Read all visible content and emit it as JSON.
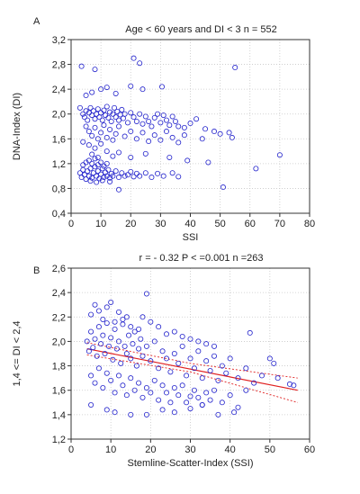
{
  "chart_data": [
    {
      "panel": "A",
      "type": "scatter",
      "title": "Age < 60 years and DI < 3    n = 552",
      "xlabel": "SSI",
      "ylabel": "DNA-Index (DI)",
      "xlim": [
        0,
        80
      ],
      "ylim": [
        0.4,
        3.2
      ],
      "xticks": [
        0,
        10,
        20,
        30,
        40,
        50,
        60,
        70,
        80
      ],
      "yticks": [
        0.4,
        0.8,
        1.2,
        1.6,
        2.0,
        2.4,
        2.8,
        3.2
      ],
      "xtick_labels": [
        "0",
        "10",
        "20",
        "30",
        "40",
        "50",
        "60",
        "70",
        "80"
      ],
      "ytick_labels": [
        "0,4",
        "0,8",
        "1,2",
        "1,6",
        "2,0",
        "2,4",
        "2,8",
        "3,2"
      ],
      "grid": true,
      "marker_color": "#2222cc",
      "points": [
        [
          3.5,
          2.77
        ],
        [
          8,
          2.72
        ],
        [
          21,
          2.9
        ],
        [
          23,
          2.82
        ],
        [
          55,
          2.75
        ],
        [
          30.5,
          2.44
        ],
        [
          20,
          2.45
        ],
        [
          24,
          2.4
        ],
        [
          10,
          2.4
        ],
        [
          12,
          2.43
        ],
        [
          5,
          2.3
        ],
        [
          7,
          2.35
        ],
        [
          15,
          2.33
        ],
        [
          3,
          2.1
        ],
        [
          4,
          2.0
        ],
        [
          4.5,
          1.95
        ],
        [
          5,
          2.05
        ],
        [
          5.5,
          1.9
        ],
        [
          6,
          2.02
        ],
        [
          6.5,
          2.1
        ],
        [
          7,
          1.98
        ],
        [
          7.5,
          2.05
        ],
        [
          8,
          1.92
        ],
        [
          8.5,
          2.0
        ],
        [
          9,
          2.08
        ],
        [
          9.5,
          1.95
        ],
        [
          10,
          2.02
        ],
        [
          10.5,
          1.9
        ],
        [
          11,
          2.06
        ],
        [
          11.5,
          1.98
        ],
        [
          12,
          2.12
        ],
        [
          12.5,
          1.94
        ],
        [
          13,
          2.03
        ],
        [
          13.5,
          1.88
        ],
        [
          14,
          2.0
        ],
        [
          14.5,
          2.1
        ],
        [
          15,
          1.95
        ],
        [
          15.5,
          2.04
        ],
        [
          16,
          1.9
        ],
        [
          16.5,
          1.99
        ],
        [
          17,
          2.07
        ],
        [
          17.5,
          1.93
        ],
        [
          18,
          2.0
        ],
        [
          19,
          1.86
        ],
        [
          20,
          2.02
        ],
        [
          21,
          1.95
        ],
        [
          22,
          1.88
        ],
        [
          23,
          2.0
        ],
        [
          24,
          1.84
        ],
        [
          25,
          1.96
        ],
        [
          26,
          1.88
        ],
        [
          27,
          1.8
        ],
        [
          28,
          1.94
        ],
        [
          29,
          2.0
        ],
        [
          30,
          1.86
        ],
        [
          31,
          1.98
        ],
        [
          32,
          1.9
        ],
        [
          33,
          1.82
        ],
        [
          34,
          1.96
        ],
        [
          35,
          1.88
        ],
        [
          36,
          1.8
        ],
        [
          38,
          1.78
        ],
        [
          40,
          1.85
        ],
        [
          42,
          1.92
        ],
        [
          45,
          1.76
        ],
        [
          48,
          1.72
        ],
        [
          50,
          1.68
        ],
        [
          53,
          1.7
        ],
        [
          5,
          1.8
        ],
        [
          6,
          1.72
        ],
        [
          7,
          1.65
        ],
        [
          8,
          1.78
        ],
        [
          9,
          1.6
        ],
        [
          10,
          1.7
        ],
        [
          11,
          1.82
        ],
        [
          12,
          1.62
        ],
        [
          13,
          1.75
        ],
        [
          14,
          1.58
        ],
        [
          15,
          1.68
        ],
        [
          16,
          1.8
        ],
        [
          18,
          1.64
        ],
        [
          20,
          1.72
        ],
        [
          22,
          1.6
        ],
        [
          24,
          1.7
        ],
        [
          26,
          1.56
        ],
        [
          28,
          1.66
        ],
        [
          30,
          1.58
        ],
        [
          32,
          1.72
        ],
        [
          34,
          1.62
        ],
        [
          36,
          1.54
        ],
        [
          38,
          1.66
        ],
        [
          44,
          1.6
        ],
        [
          54,
          1.62
        ],
        [
          4,
          1.55
        ],
        [
          6,
          1.5
        ],
        [
          8,
          1.45
        ],
        [
          10,
          1.52
        ],
        [
          7,
          1.35
        ],
        [
          9,
          1.3
        ],
        [
          12,
          1.4
        ],
        [
          14,
          1.32
        ],
        [
          16,
          1.38
        ],
        [
          20,
          1.3
        ],
        [
          25,
          1.36
        ],
        [
          33,
          1.3
        ],
        [
          39,
          1.25
        ],
        [
          46,
          1.22
        ],
        [
          62,
          1.12
        ],
        [
          70,
          1.34
        ],
        [
          3,
          1.05
        ],
        [
          3.5,
          0.98
        ],
        [
          4,
          1.1
        ],
        [
          4.5,
          1.02
        ],
        [
          5,
          0.95
        ],
        [
          5.5,
          1.08
        ],
        [
          6,
          1.0
        ],
        [
          6.5,
          1.12
        ],
        [
          7,
          0.97
        ],
        [
          7.5,
          1.05
        ],
        [
          8,
          1.15
        ],
        [
          8.5,
          1.0
        ],
        [
          9,
          1.08
        ],
        [
          9.5,
          0.96
        ],
        [
          10,
          1.03
        ],
        [
          10.5,
          1.12
        ],
        [
          11,
          0.98
        ],
        [
          11.5,
          1.06
        ],
        [
          12,
          1.0
        ],
        [
          12.5,
          1.1
        ],
        [
          13,
          0.97
        ],
        [
          13.5,
          1.04
        ],
        [
          14,
          1.0
        ],
        [
          15,
          1.08
        ],
        [
          16,
          0.98
        ],
        [
          17,
          1.05
        ],
        [
          18,
          1.0
        ],
        [
          19,
          1.02
        ],
        [
          20,
          1.07
        ],
        [
          21,
          0.99
        ],
        [
          22,
          1.04
        ],
        [
          23,
          1.0
        ],
        [
          25,
          1.05
        ],
        [
          27,
          0.98
        ],
        [
          29,
          1.04
        ],
        [
          31,
          1.0
        ],
        [
          34,
          1.05
        ],
        [
          36,
          0.99
        ],
        [
          4,
          1.18
        ],
        [
          5,
          1.22
        ],
        [
          6,
          1.25
        ],
        [
          7,
          1.2
        ],
        [
          8,
          1.28
        ],
        [
          9,
          1.18
        ],
        [
          10,
          1.22
        ],
        [
          11,
          1.16
        ],
        [
          12,
          1.2
        ],
        [
          6.5,
          0.92
        ],
        [
          8.5,
          0.9
        ],
        [
          10.5,
          0.93
        ],
        [
          13,
          0.91
        ],
        [
          16,
          0.78
        ],
        [
          51,
          0.82
        ]
      ]
    },
    {
      "panel": "B",
      "type": "scatter",
      "title": "r = - 0.32   P < =0.001  n =263",
      "xlabel": "Stemline-Scatter-Index (SSI)",
      "ylabel": "1,4 <= DI < 2,4",
      "xlim": [
        0,
        60
      ],
      "ylim": [
        1.2,
        2.6
      ],
      "xticks": [
        0,
        10,
        20,
        30,
        40,
        50,
        60
      ],
      "yticks": [
        1.2,
        1.4,
        1.6,
        1.8,
        2.0,
        2.2,
        2.4,
        2.6
      ],
      "xtick_labels": [
        "0",
        "10",
        "20",
        "30",
        "40",
        "50",
        "60"
      ],
      "ytick_labels": [
        "1,2",
        "1,4",
        "1,6",
        "1,8",
        "2,0",
        "2,2",
        "2,4",
        "2,6"
      ],
      "grid": true,
      "marker_color": "#2222cc",
      "fit_color": "#e02020",
      "fit_line": {
        "x": [
          4,
          57
        ],
        "y": [
          1.94,
          1.6
        ]
      },
      "ci_upper": {
        "x": [
          4,
          30,
          57
        ],
        "y": [
          1.99,
          1.82,
          1.7
        ]
      },
      "ci_lower": {
        "x": [
          4,
          30,
          57
        ],
        "y": [
          1.89,
          1.75,
          1.5
        ]
      },
      "points": [
        [
          4,
          2.0
        ],
        [
          4.5,
          1.92
        ],
        [
          5,
          2.08
        ],
        [
          5.5,
          1.95
        ],
        [
          6,
          2.02
        ],
        [
          6.5,
          1.88
        ],
        [
          7,
          2.12
        ],
        [
          7.5,
          1.98
        ],
        [
          8,
          2.05
        ],
        [
          8.5,
          1.9
        ],
        [
          9,
          2.15
        ],
        [
          9.5,
          1.96
        ],
        [
          10,
          2.03
        ],
        [
          10.5,
          1.85
        ],
        [
          11,
          2.1
        ],
        [
          11.5,
          1.94
        ],
        [
          12,
          2.0
        ],
        [
          12.5,
          1.82
        ],
        [
          13,
          2.18
        ],
        [
          13.5,
          1.96
        ],
        [
          14,
          1.9
        ],
        [
          14.5,
          2.05
        ],
        [
          15,
          1.86
        ],
        [
          15.5,
          1.98
        ],
        [
          16,
          2.08
        ],
        [
          16.5,
          1.8
        ],
        [
          17,
          1.94
        ],
        [
          17.5,
          2.02
        ],
        [
          18,
          1.88
        ],
        [
          19,
          1.96
        ],
        [
          20,
          1.84
        ],
        [
          21,
          2.0
        ],
        [
          22,
          1.78
        ],
        [
          23,
          1.92
        ],
        [
          24,
          1.86
        ],
        [
          25,
          1.75
        ],
        [
          26,
          1.9
        ],
        [
          27,
          1.82
        ],
        [
          28,
          1.96
        ],
        [
          29,
          1.72
        ],
        [
          30,
          1.86
        ],
        [
          31,
          1.78
        ],
        [
          32,
          1.92
        ],
        [
          33,
          1.7
        ],
        [
          34,
          1.84
        ],
        [
          35,
          1.76
        ],
        [
          36,
          1.88
        ],
        [
          37,
          1.68
        ],
        [
          38,
          1.8
        ],
        [
          39,
          1.74
        ],
        [
          40,
          1.86
        ],
        [
          42,
          1.7
        ],
        [
          44,
          1.78
        ],
        [
          46,
          1.66
        ],
        [
          48,
          1.72
        ],
        [
          50,
          1.86
        ],
        [
          52,
          1.7
        ],
        [
          55,
          1.65
        ],
        [
          6,
          2.3
        ],
        [
          7,
          2.25
        ],
        [
          9,
          2.28
        ],
        [
          10,
          2.32
        ],
        [
          12,
          2.24
        ],
        [
          14,
          2.2
        ],
        [
          19,
          2.39
        ],
        [
          5,
          2.22
        ],
        [
          8,
          2.18
        ],
        [
          11,
          2.16
        ],
        [
          13,
          2.14
        ],
        [
          15,
          2.12
        ],
        [
          17,
          2.1
        ],
        [
          18,
          2.2
        ],
        [
          20,
          2.16
        ],
        [
          22,
          2.12
        ],
        [
          24,
          2.06
        ],
        [
          26,
          2.08
        ],
        [
          28,
          2.04
        ],
        [
          30,
          2.02
        ],
        [
          32,
          2.0
        ],
        [
          34,
          1.98
        ],
        [
          36,
          1.96
        ],
        [
          45,
          2.07
        ],
        [
          5,
          1.72
        ],
        [
          6,
          1.66
        ],
        [
          7,
          1.78
        ],
        [
          8,
          1.62
        ],
        [
          9,
          1.74
        ],
        [
          10,
          1.68
        ],
        [
          11,
          1.58
        ],
        [
          12,
          1.72
        ],
        [
          13,
          1.64
        ],
        [
          14,
          1.56
        ],
        [
          15,
          1.7
        ],
        [
          16,
          1.6
        ],
        [
          17,
          1.66
        ],
        [
          18,
          1.54
        ],
        [
          19,
          1.62
        ],
        [
          20,
          1.58
        ],
        [
          21,
          1.68
        ],
        [
          22,
          1.52
        ],
        [
          23,
          1.64
        ],
        [
          24,
          1.58
        ],
        [
          25,
          1.5
        ],
        [
          26,
          1.62
        ],
        [
          27,
          1.56
        ],
        [
          28,
          1.64
        ],
        [
          29,
          1.5
        ],
        [
          30,
          1.55
        ],
        [
          31,
          1.6
        ],
        [
          32,
          1.54
        ],
        [
          33,
          1.48
        ],
        [
          34,
          1.58
        ],
        [
          35,
          1.52
        ],
        [
          36,
          1.6
        ],
        [
          38,
          1.5
        ],
        [
          40,
          1.56
        ],
        [
          42,
          1.46
        ],
        [
          44,
          1.6
        ],
        [
          5,
          1.48
        ],
        [
          9,
          1.44
        ],
        [
          11,
          1.42
        ],
        [
          15,
          1.4
        ],
        [
          19,
          1.4
        ],
        [
          23,
          1.44
        ],
        [
          26,
          1.42
        ],
        [
          30,
          1.45
        ],
        [
          33,
          1.48
        ],
        [
          37,
          1.4
        ],
        [
          41,
          1.42
        ],
        [
          51,
          1.82
        ],
        [
          56,
          1.64
        ]
      ]
    }
  ]
}
